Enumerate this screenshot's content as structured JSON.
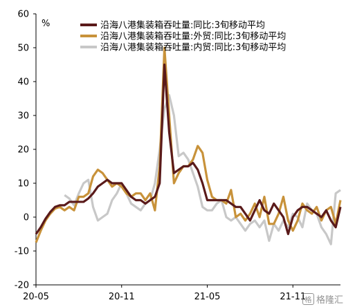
{
  "chart_data": {
    "type": "line",
    "unit_label": "%",
    "ylim": [
      -20,
      60
    ],
    "y_ticks": [
      60,
      50,
      40,
      30,
      20,
      10,
      0,
      -10,
      -20
    ],
    "x_ticks": [
      {
        "label": "20-05",
        "i": 0
      },
      {
        "label": "20-11",
        "i": 18
      },
      {
        "label": "21-05",
        "i": 36
      },
      {
        "label": "21-11",
        "i": 54
      }
    ],
    "n_points": 65,
    "grid": false,
    "legend_position": "top",
    "series": [
      {
        "name": "沿海八港集装箱吞吐量:同比:3旬移动平均",
        "color": "#5a1a1a",
        "values": [
          -5,
          -3,
          -0.5,
          1.5,
          3,
          3.5,
          3.5,
          4.5,
          4.5,
          4.5,
          4.5,
          5.5,
          7,
          9,
          10,
          11,
          10,
          10,
          10,
          8,
          6,
          5,
          5,
          4,
          5,
          6,
          10,
          45,
          25,
          13,
          14,
          15,
          15,
          16,
          14,
          10,
          5,
          5,
          5,
          5,
          5,
          4,
          3,
          3,
          1,
          -1,
          2,
          5,
          2,
          1,
          4,
          2,
          0,
          -5,
          0,
          2,
          3,
          3,
          2,
          1,
          0,
          2,
          -1,
          -3,
          3
        ]
      },
      {
        "name": "沿海八港集装箱吞吐量:外贸:同比:3旬移动平均",
        "color": "#c8923a",
        "values": [
          -7.5,
          -4,
          -1,
          1,
          2.5,
          3,
          2,
          3,
          2,
          6,
          6,
          7,
          12,
          14,
          13,
          11,
          9,
          10,
          9,
          7,
          6,
          7,
          7,
          5,
          7,
          2,
          15,
          50,
          30,
          10,
          13,
          15,
          15,
          17,
          21,
          19,
          11,
          6,
          5,
          5,
          4,
          8,
          0,
          1,
          -1,
          1,
          4,
          0,
          6,
          -2,
          -2,
          1,
          6,
          -1,
          -4,
          -1,
          4,
          2,
          1,
          3,
          -1,
          2,
          3,
          -2,
          5
        ]
      },
      {
        "name": "沿海八港集装箱吞吐量:内贸:同比:3旬移动平均",
        "color": "#c8c8c8",
        "values": [
          null,
          null,
          null,
          null,
          null,
          null,
          6.5,
          5.5,
          3.5,
          7,
          10,
          11,
          3,
          -1,
          0,
          1,
          5,
          7,
          10,
          7,
          4,
          3,
          2,
          4,
          5,
          10,
          20,
          32,
          36,
          30,
          18,
          19,
          17,
          13,
          9,
          3,
          2,
          2,
          4,
          5,
          0,
          -1,
          0,
          -2,
          -4,
          -2,
          -1,
          -3,
          -1,
          -7,
          -2,
          -4,
          -1,
          -3,
          1,
          0,
          -3,
          4,
          2,
          1,
          -3,
          -5,
          -8,
          7,
          8
        ]
      }
    ]
  },
  "watermark": {
    "badge": "格",
    "text": "格隆汇"
  }
}
